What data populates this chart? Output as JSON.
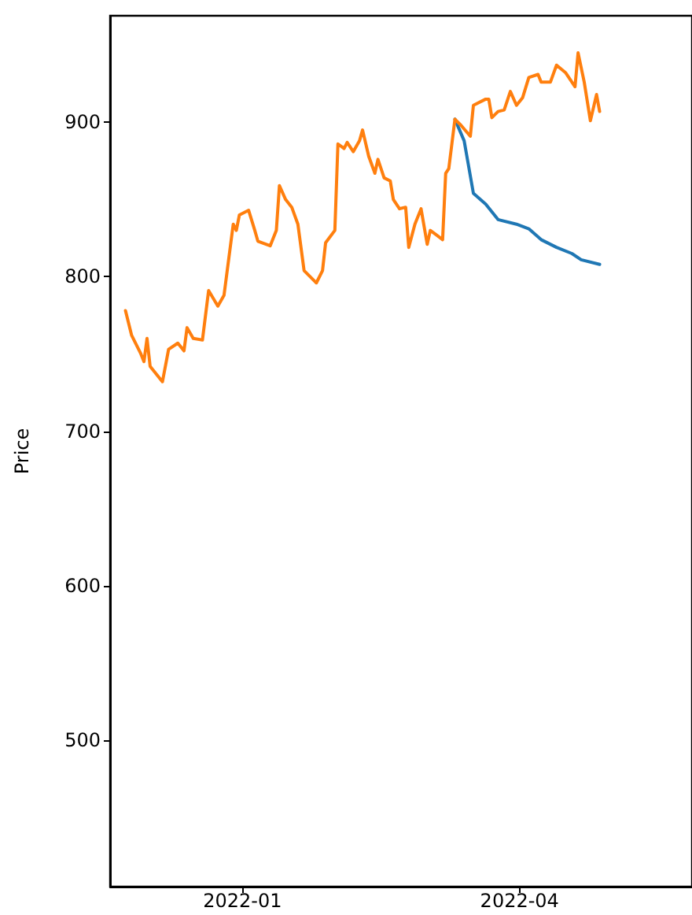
{
  "chart_data": {
    "type": "line",
    "ylabel": "Price",
    "xlim": [
      "2021-11-19",
      "2022-05-27"
    ],
    "xticks": [
      {
        "value": "2022-01-01",
        "label": "2022-01"
      },
      {
        "value": "2022-04-01",
        "label": "2022-04"
      }
    ],
    "ylim": [
      405,
      969
    ],
    "yticks": [
      500,
      600,
      700,
      800,
      900
    ],
    "series": [
      {
        "color": "#1f77b4",
        "x": [
          "2022-03-11",
          "2022-03-14",
          "2022-03-17",
          "2022-03-21",
          "2022-03-25",
          "2022-03-31",
          "2022-04-04",
          "2022-04-08",
          "2022-04-13",
          "2022-04-18",
          "2022-04-21",
          "2022-04-27"
        ],
        "values": [
          902,
          888,
          854,
          847,
          837,
          834,
          831,
          824,
          819,
          815,
          811,
          808
        ]
      },
      {
        "color": "#ff7f0e",
        "x": [
          "2021-11-24",
          "2021-11-26",
          "2021-11-29",
          "2021-11-30",
          "2021-12-01",
          "2021-12-02",
          "2021-12-06",
          "2021-12-08",
          "2021-12-11",
          "2021-12-13",
          "2021-12-14",
          "2021-12-16",
          "2021-12-19",
          "2021-12-21",
          "2021-12-24",
          "2021-12-26",
          "2021-12-29",
          "2021-12-30",
          "2021-12-31",
          "2022-01-03",
          "2022-01-05",
          "2022-01-06",
          "2022-01-10",
          "2022-01-12",
          "2022-01-13",
          "2022-01-15",
          "2022-01-17",
          "2022-01-19",
          "2022-01-21",
          "2022-01-24",
          "2022-01-25",
          "2022-01-27",
          "2022-01-28",
          "2022-01-31",
          "2022-02-01",
          "2022-02-03",
          "2022-02-04",
          "2022-02-06",
          "2022-02-08",
          "2022-02-09",
          "2022-02-11",
          "2022-02-13",
          "2022-02-14",
          "2022-02-16",
          "2022-02-18",
          "2022-02-19",
          "2022-02-21",
          "2022-02-23",
          "2022-02-24",
          "2022-02-26",
          "2022-02-28",
          "2022-03-02",
          "2022-03-03",
          "2022-03-05",
          "2022-03-07",
          "2022-03-08",
          "2022-03-09",
          "2022-03-11",
          "2022-03-13",
          "2022-03-16",
          "2022-03-17",
          "2022-03-21",
          "2022-03-22",
          "2022-03-23",
          "2022-03-25",
          "2022-03-27",
          "2022-03-29",
          "2022-03-31",
          "2022-04-02",
          "2022-04-04",
          "2022-04-07",
          "2022-04-08",
          "2022-04-11",
          "2022-04-13",
          "2022-04-16",
          "2022-04-19",
          "2022-04-20",
          "2022-04-22",
          "2022-04-24",
          "2022-04-26",
          "2022-04-27"
        ],
        "values": [
          778,
          762,
          750,
          745,
          760,
          742,
          732,
          753,
          757,
          752,
          767,
          760,
          759,
          791,
          781,
          788,
          834,
          830,
          840,
          843,
          830,
          823,
          820,
          830,
          859,
          850,
          845,
          834,
          804,
          798,
          796,
          804,
          822,
          830,
          886,
          883,
          887,
          881,
          888,
          895,
          878,
          867,
          876,
          864,
          862,
          850,
          844,
          845,
          819,
          834,
          844,
          821,
          830,
          827,
          824,
          867,
          870,
          902,
          898,
          891,
          911,
          915,
          915,
          903,
          907,
          908,
          920,
          911,
          916,
          929,
          931,
          926,
          926,
          937,
          932,
          923,
          945,
          926,
          901,
          918,
          907
        ]
      }
    ]
  }
}
